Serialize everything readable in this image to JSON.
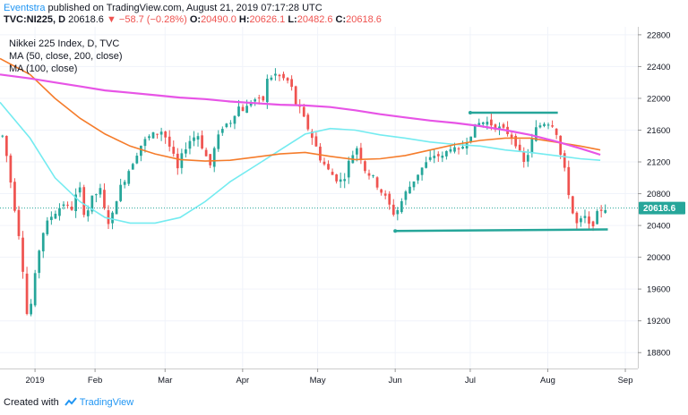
{
  "header": {
    "author": "Eventstra",
    "published": " published on TradingView.com, August 21, 2019 07:17:28 UTC",
    "symbol": "TVC:NI225, D",
    "last": "20618.6",
    "change": "−58.7 (−0.28%)",
    "o_label": "O:",
    "o": "20490.0",
    "h_label": "H:",
    "h": "20626.1",
    "l_label": "L:",
    "l": "20482.6",
    "c_label": "C:",
    "c": "20618.6"
  },
  "legend": {
    "title": "Nikkei 225 Index, D, TVC",
    "ma1": "MA (50, close, 200, close)",
    "ma2": "MA (100, close)"
  },
  "footer": {
    "created": "Created with",
    "brand": "TradingView"
  },
  "colors": {
    "up": "#26a69a",
    "down": "#ef5350",
    "ma50": "#74ebf0",
    "ma100": "#f57c2b",
    "ma200": "#e754e6",
    "trend": "#26a69a",
    "price_tag": "#26a69a",
    "dotted": "#26a69a"
  },
  "chart_data": {
    "type": "candlestick",
    "y_range": [
      18600,
      22900
    ],
    "y_ticks": [
      18800,
      19200,
      19600,
      20000,
      20400,
      20800,
      21200,
      21600,
      22000,
      22400,
      22800
    ],
    "x_labels": [
      {
        "label": "2019",
        "day": 7
      },
      {
        "label": "Feb",
        "day": 31
      },
      {
        "label": "Mar",
        "day": 59
      },
      {
        "label": "Apr",
        "day": 90
      },
      {
        "label": "May",
        "day": 120
      },
      {
        "label": "Jun",
        "day": 151
      },
      {
        "label": "Jul",
        "day": 181
      },
      {
        "label": "Aug",
        "day": 212
      },
      {
        "label": "Sep",
        "day": 243
      }
    ],
    "x_domain_days": [
      -7,
      248
    ],
    "last_price": 20618.6,
    "last_price_label": "20618.6",
    "candle_count": 149,
    "ma_lines": [
      {
        "name": "MA 50",
        "color_key": "ma50",
        "points": [
          [
            -7,
            21950
          ],
          [
            5,
            21500
          ],
          [
            15,
            21000
          ],
          [
            25,
            20700
          ],
          [
            35,
            20500
          ],
          [
            45,
            20430
          ],
          [
            55,
            20430
          ],
          [
            65,
            20500
          ],
          [
            75,
            20700
          ],
          [
            85,
            20950
          ],
          [
            95,
            21150
          ],
          [
            105,
            21350
          ],
          [
            115,
            21550
          ],
          [
            125,
            21620
          ],
          [
            135,
            21600
          ],
          [
            145,
            21540
          ],
          [
            155,
            21500
          ],
          [
            165,
            21450
          ],
          [
            175,
            21420
          ],
          [
            185,
            21400
          ],
          [
            195,
            21350
          ],
          [
            205,
            21320
          ],
          [
            215,
            21280
          ],
          [
            225,
            21240
          ],
          [
            233,
            21220
          ]
        ]
      },
      {
        "name": "MA 100",
        "color_key": "ma100",
        "points": [
          [
            -7,
            22500
          ],
          [
            5,
            22300
          ],
          [
            15,
            22000
          ],
          [
            25,
            21750
          ],
          [
            35,
            21550
          ],
          [
            45,
            21400
          ],
          [
            55,
            21300
          ],
          [
            65,
            21230
          ],
          [
            75,
            21210
          ],
          [
            85,
            21220
          ],
          [
            95,
            21260
          ],
          [
            105,
            21300
          ],
          [
            115,
            21320
          ],
          [
            125,
            21270
          ],
          [
            135,
            21230
          ],
          [
            145,
            21240
          ],
          [
            155,
            21280
          ],
          [
            165,
            21350
          ],
          [
            175,
            21420
          ],
          [
            185,
            21470
          ],
          [
            195,
            21500
          ],
          [
            205,
            21500
          ],
          [
            215,
            21450
          ],
          [
            225,
            21400
          ],
          [
            233,
            21350
          ]
        ]
      },
      {
        "name": "MA 200",
        "color_key": "ma200",
        "points": [
          [
            -7,
            22300
          ],
          [
            5,
            22250
          ],
          [
            15,
            22200
          ],
          [
            25,
            22150
          ],
          [
            35,
            22100
          ],
          [
            45,
            22070
          ],
          [
            55,
            22040
          ],
          [
            65,
            22010
          ],
          [
            75,
            21990
          ],
          [
            85,
            21960
          ],
          [
            95,
            21940
          ],
          [
            105,
            21920
          ],
          [
            115,
            21910
          ],
          [
            125,
            21890
          ],
          [
            135,
            21850
          ],
          [
            145,
            21800
          ],
          [
            155,
            21760
          ],
          [
            165,
            21720
          ],
          [
            175,
            21690
          ],
          [
            185,
            21650
          ],
          [
            195,
            21600
          ],
          [
            205,
            21540
          ],
          [
            215,
            21460
          ],
          [
            225,
            21370
          ],
          [
            233,
            21290
          ]
        ]
      }
    ],
    "trendlines": [
      {
        "points": [
          [
            181,
            21820
          ],
          [
            216,
            21820
          ]
        ],
        "label": ""
      },
      {
        "points": [
          [
            151,
            20330
          ],
          [
            236,
            20350
          ]
        ],
        "label": ""
      }
    ]
  }
}
